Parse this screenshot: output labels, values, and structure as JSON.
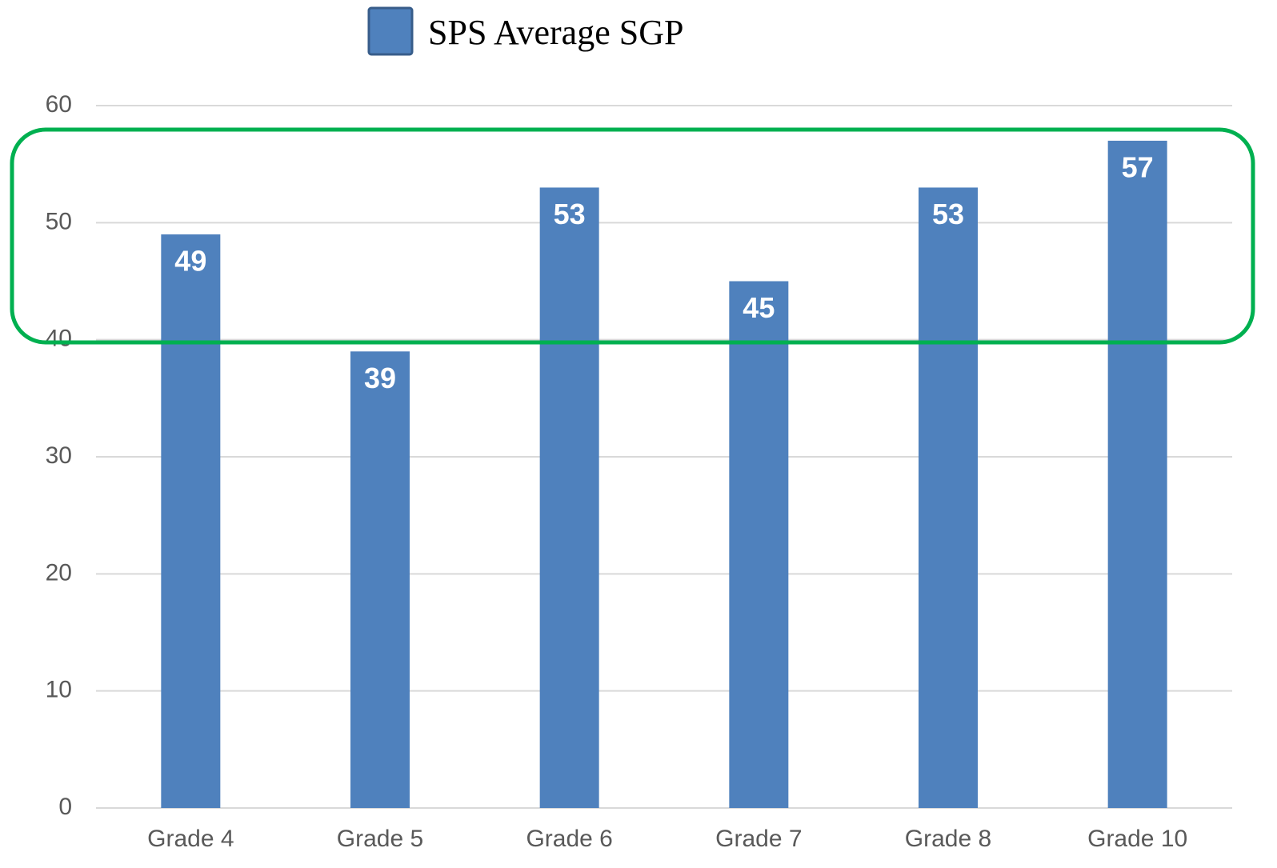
{
  "chart_data": {
    "type": "bar",
    "categories": [
      "Grade 4",
      "Grade 5",
      "Grade 6",
      "Grade 7",
      "Grade 8",
      "Grade 10"
    ],
    "series": [
      {
        "name": "SPS Average SGP",
        "color": "#4f81bd",
        "values": [
          49,
          39,
          53,
          45,
          53,
          57
        ]
      }
    ],
    "ylim": [
      0,
      60
    ],
    "yticks": [
      0,
      10,
      20,
      30,
      40,
      50,
      60
    ],
    "grid": true,
    "legend": "top"
  }
}
